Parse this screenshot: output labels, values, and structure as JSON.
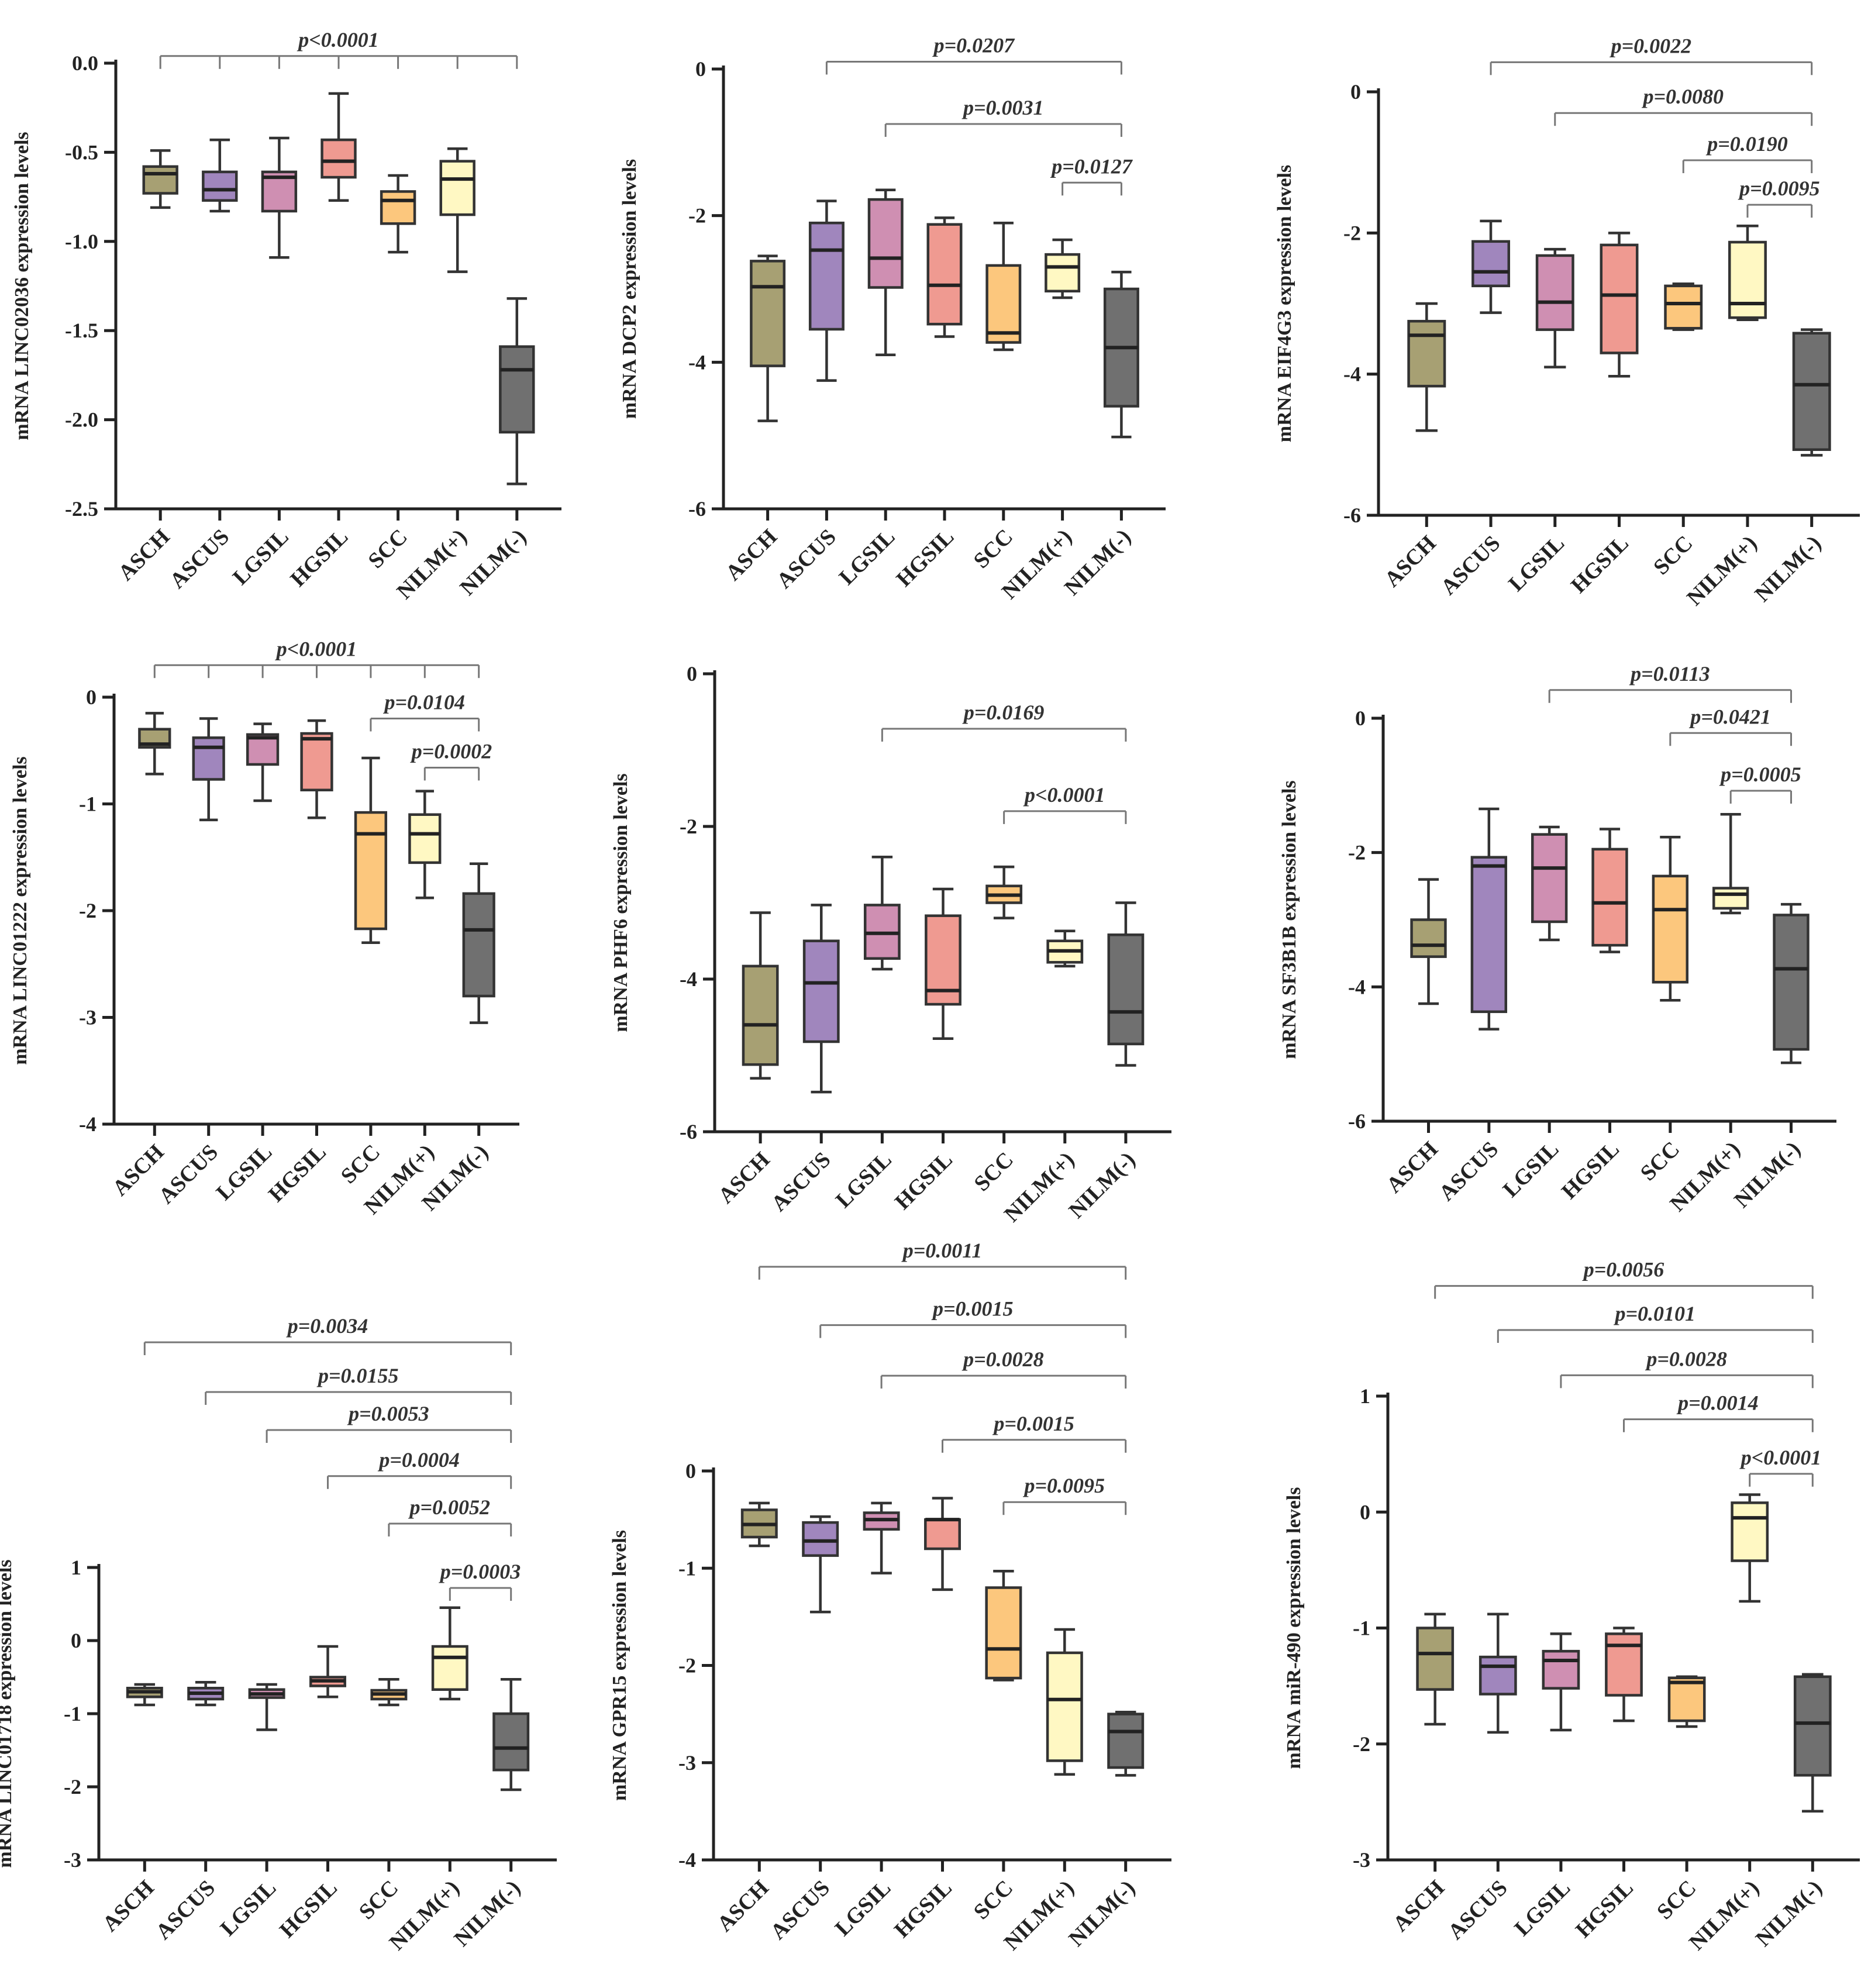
{
  "colors": {
    "ASCH": "#a7a073",
    "ASCUS": "#a086bd",
    "LGSIL": "#cf8fb2",
    "HGSIL": "#ef9a91",
    "SCC": "#fcc77d",
    "NILM(+)": "#fff8c3",
    "NILM(-)": "#707070"
  },
  "chart_data": [
    {
      "type": "box",
      "ylabel": "mRNA LINC02036 expression levels",
      "categories": [
        "ASCH",
        "ASCUS",
        "LGSIL",
        "HGSIL",
        "SCC",
        "NILM(+)",
        "NILM(-)"
      ],
      "ylim": [
        -2.5,
        0.0
      ],
      "yticks": [
        -2.5,
        -2.0,
        -1.5,
        -1.0,
        -0.5,
        0.0
      ],
      "ytick_labels": [
        "-2.5",
        "-2.0",
        "-1.5",
        "-1.0",
        "-0.5",
        "0.0"
      ],
      "boxes": [
        {
          "min": -0.81,
          "q1": -0.73,
          "median": -0.62,
          "q3": -0.58,
          "max": -0.49
        },
        {
          "min": -0.83,
          "q1": -0.77,
          "median": -0.71,
          "q3": -0.61,
          "max": -0.43
        },
        {
          "min": -1.09,
          "q1": -0.83,
          "median": -0.64,
          "q3": -0.61,
          "max": -0.42
        },
        {
          "min": -0.77,
          "q1": -0.64,
          "median": -0.55,
          "q3": -0.43,
          "max": -0.17
        },
        {
          "min": -1.06,
          "q1": -0.9,
          "median": -0.77,
          "q3": -0.72,
          "max": -0.63
        },
        {
          "min": -1.17,
          "q1": -0.85,
          "median": -0.65,
          "q3": -0.55,
          "max": -0.48
        },
        {
          "min": -2.36,
          "q1": -2.07,
          "median": -1.72,
          "q3": -1.59,
          "max": -1.32
        }
      ],
      "comparisons": [
        {
          "label": "p<0.0001",
          "from": 0,
          "to": 6,
          "ticks": [
            0,
            1,
            2,
            3,
            4,
            5,
            6
          ],
          "y": 0.04
        }
      ]
    },
    {
      "type": "box",
      "ylabel": "mRNA DCP2 expression levels",
      "categories": [
        "ASCH",
        "ASCUS",
        "LGSIL",
        "HGSIL",
        "SCC",
        "NILM(+)",
        "NILM(-)"
      ],
      "ylim": [
        -6,
        0
      ],
      "yticks": [
        -6,
        -4,
        -2,
        0
      ],
      "ytick_labels": [
        "-6",
        "-4",
        "-2",
        "0"
      ],
      "boxes": [
        {
          "min": -4.8,
          "q1": -4.05,
          "median": -2.97,
          "q3": -2.62,
          "max": -2.55
        },
        {
          "min": -4.25,
          "q1": -3.55,
          "median": -2.47,
          "q3": -2.1,
          "max": -1.8
        },
        {
          "min": -3.9,
          "q1": -2.98,
          "median": -2.58,
          "q3": -1.78,
          "max": -1.65
        },
        {
          "min": -3.65,
          "q1": -3.48,
          "median": -2.95,
          "q3": -2.12,
          "max": -2.03
        },
        {
          "min": -3.83,
          "q1": -3.73,
          "median": -3.6,
          "q3": -2.68,
          "max": -2.1
        },
        {
          "min": -3.12,
          "q1": -3.03,
          "median": -2.7,
          "q3": -2.53,
          "max": -2.33
        },
        {
          "min": -5.02,
          "q1": -4.6,
          "median": -3.8,
          "q3": -3.0,
          "max": -2.77
        }
      ],
      "comparisons": [
        {
          "label": "p=0.0207",
          "from": 1,
          "to": 6,
          "y": 0.1
        },
        {
          "label": "p=0.0031",
          "from": 2,
          "to": 6,
          "y": -0.75
        },
        {
          "label": "p=0.0127",
          "from": 5,
          "to": 6,
          "y": -1.55
        }
      ]
    },
    {
      "type": "box",
      "ylabel": "mRNA EIF4G3 expression levels",
      "categories": [
        "ASCH",
        "ASCUS",
        "LGSIL",
        "HGSIL",
        "SCC",
        "NILM(+)",
        "NILM(-)"
      ],
      "ylim": [
        -6,
        0
      ],
      "yticks": [
        -6,
        -4,
        -2,
        0
      ],
      "ytick_labels": [
        "-6",
        "-4",
        "-2",
        "0"
      ],
      "boxes": [
        {
          "min": -4.8,
          "q1": -4.17,
          "median": -3.45,
          "q3": -3.25,
          "max": -3.0
        },
        {
          "min": -3.13,
          "q1": -2.75,
          "median": -2.55,
          "q3": -2.12,
          "max": -1.83
        },
        {
          "min": -3.9,
          "q1": -3.37,
          "median": -2.98,
          "q3": -2.32,
          "max": -2.23
        },
        {
          "min": -4.03,
          "q1": -3.7,
          "median": -2.88,
          "q3": -2.17,
          "max": -2.0
        },
        {
          "min": -3.37,
          "q1": -3.35,
          "median": -3.0,
          "q3": -2.75,
          "max": -2.72
        },
        {
          "min": -3.23,
          "q1": -3.2,
          "median": -3.0,
          "q3": -2.13,
          "max": -1.9
        },
        {
          "min": -5.15,
          "q1": -5.07,
          "median": -4.15,
          "q3": -3.42,
          "max": -3.37
        }
      ],
      "comparisons": [
        {
          "label": "p=0.0022",
          "from": 1,
          "to": 6,
          "y": 0.42
        },
        {
          "label": "p=0.0080",
          "from": 2,
          "to": 6,
          "y": -0.3
        },
        {
          "label": "p=0.0190",
          "from": 4,
          "to": 6,
          "y": -0.97
        },
        {
          "label": "p=0.0095",
          "from": 5,
          "to": 6,
          "y": -1.6
        }
      ]
    },
    {
      "type": "box",
      "ylabel": "mRNA LINC01222 expression levels",
      "categories": [
        "ASCH",
        "ASCUS",
        "LGSIL",
        "HGSIL",
        "SCC",
        "NILM(+)",
        "NILM(-)"
      ],
      "ylim": [
        -4,
        0
      ],
      "yticks": [
        -4,
        -3,
        -2,
        -1,
        0
      ],
      "ytick_labels": [
        "-4",
        "-3",
        "-2",
        "-1",
        "0"
      ],
      "boxes": [
        {
          "min": -0.72,
          "q1": -0.47,
          "median": -0.44,
          "q3": -0.3,
          "max": -0.15
        },
        {
          "min": -1.15,
          "q1": -0.77,
          "median": -0.47,
          "q3": -0.38,
          "max": -0.2
        },
        {
          "min": -0.97,
          "q1": -0.63,
          "median": -0.38,
          "q3": -0.35,
          "max": -0.25
        },
        {
          "min": -1.13,
          "q1": -0.87,
          "median": -0.39,
          "q3": -0.34,
          "max": -0.22
        },
        {
          "min": -2.3,
          "q1": -2.17,
          "median": -1.28,
          "q3": -1.08,
          "max": -0.57
        },
        {
          "min": -1.88,
          "q1": -1.55,
          "median": -1.28,
          "q3": -1.1,
          "max": -0.88
        },
        {
          "min": -3.05,
          "q1": -2.8,
          "median": -2.18,
          "q3": -1.84,
          "max": -1.56
        }
      ],
      "comparisons": [
        {
          "label": "p<0.0001",
          "from": 0,
          "to": 6,
          "ticks": [
            0,
            1,
            2,
            3,
            4,
            5,
            6
          ],
          "y": 0.3
        },
        {
          "label": "p=0.0104",
          "from": 4,
          "to": 6,
          "y": -0.2
        },
        {
          "label": "p=0.0002",
          "from": 5,
          "to": 6,
          "y": -0.66
        }
      ]
    },
    {
      "type": "box",
      "ylabel": "mRNA PHF6 expression levels",
      "categories": [
        "ASCH",
        "ASCUS",
        "LGSIL",
        "HGSIL",
        "SCC",
        "NILM(+)",
        "NILM(-)"
      ],
      "ylim": [
        -6,
        0
      ],
      "yticks": [
        -6,
        -4,
        -2,
        0
      ],
      "ytick_labels": [
        "-6",
        "-4",
        "-2",
        "0"
      ],
      "boxes": [
        {
          "min": -5.3,
          "q1": -5.12,
          "median": -4.6,
          "q3": -3.83,
          "max": -3.13
        },
        {
          "min": -5.48,
          "q1": -4.82,
          "median": -4.05,
          "q3": -3.5,
          "max": -3.03
        },
        {
          "min": -3.87,
          "q1": -3.73,
          "median": -3.4,
          "q3": -3.03,
          "max": -2.4
        },
        {
          "min": -4.78,
          "q1": -4.33,
          "median": -4.15,
          "q3": -3.17,
          "max": -2.82
        },
        {
          "min": -3.2,
          "q1": -3.0,
          "median": -2.9,
          "q3": -2.78,
          "max": -2.53
        },
        {
          "min": -3.83,
          "q1": -3.78,
          "median": -3.63,
          "q3": -3.5,
          "max": -3.37
        },
        {
          "min": -5.13,
          "q1": -4.85,
          "median": -4.43,
          "q3": -3.42,
          "max": -3.0
        }
      ],
      "comparisons": [
        {
          "label": "p=0.0169",
          "from": 2,
          "to": 6,
          "y": -0.72
        },
        {
          "label": "p<0.0001",
          "from": 4,
          "to": 6,
          "y": -1.8
        }
      ]
    },
    {
      "type": "box",
      "ylabel": "mRNA SF3B1B expression levels",
      "categories": [
        "ASCH",
        "ASCUS",
        "LGSIL",
        "HGSIL",
        "SCC",
        "NILM(+)",
        "NILM(-)"
      ],
      "ylim": [
        -6,
        0
      ],
      "yticks": [
        -6,
        -4,
        -2,
        0
      ],
      "ytick_labels": [
        "-6",
        "-4",
        "-2",
        "0"
      ],
      "boxes": [
        {
          "min": -4.25,
          "q1": -3.55,
          "median": -3.38,
          "q3": -3.0,
          "max": -2.4
        },
        {
          "min": -4.63,
          "q1": -4.37,
          "median": -2.2,
          "q3": -2.07,
          "max": -1.35
        },
        {
          "min": -3.3,
          "q1": -3.03,
          "median": -2.23,
          "q3": -1.73,
          "max": -1.62
        },
        {
          "min": -3.48,
          "q1": -3.38,
          "median": -2.75,
          "q3": -1.95,
          "max": -1.65
        },
        {
          "min": -4.2,
          "q1": -3.93,
          "median": -2.85,
          "q3": -2.35,
          "max": -1.77
        },
        {
          "min": -2.9,
          "q1": -2.83,
          "median": -2.62,
          "q3": -2.53,
          "max": -1.43
        },
        {
          "min": -5.13,
          "q1": -4.93,
          "median": -3.73,
          "q3": -2.93,
          "max": -2.77
        }
      ],
      "comparisons": [
        {
          "label": "p=0.0113",
          "from": 2,
          "to": 6,
          "y": 0.42
        },
        {
          "label": "p=0.0421",
          "from": 4,
          "to": 6,
          "y": -0.22
        },
        {
          "label": "p=0.0005",
          "from": 5,
          "to": 6,
          "y": -1.08
        }
      ]
    },
    {
      "type": "box",
      "ylabel": "mRNA LINC01718 expression levels",
      "categories": [
        "ASCH",
        "ASCUS",
        "LGSIL",
        "HGSIL",
        "SCC",
        "NILM(+)",
        "NILM(-)"
      ],
      "ylim": [
        -3,
        1
      ],
      "yticks": [
        -3,
        -2,
        -1,
        0,
        1
      ],
      "ytick_labels": [
        "-3",
        "-2",
        "-1",
        "0",
        "1"
      ],
      "boxes": [
        {
          "min": -0.88,
          "q1": -0.77,
          "median": -0.7,
          "q3": -0.65,
          "max": -0.6
        },
        {
          "min": -0.88,
          "q1": -0.8,
          "median": -0.72,
          "q3": -0.65,
          "max": -0.57
        },
        {
          "min": -1.22,
          "q1": -0.78,
          "median": -0.73,
          "q3": -0.67,
          "max": -0.6
        },
        {
          "min": -0.77,
          "q1": -0.62,
          "median": -0.55,
          "q3": -0.5,
          "max": -0.08
        },
        {
          "min": -0.88,
          "q1": -0.8,
          "median": -0.73,
          "q3": -0.68,
          "max": -0.53
        },
        {
          "min": -0.8,
          "q1": -0.67,
          "median": -0.23,
          "q3": -0.08,
          "max": 0.45
        },
        {
          "min": -2.04,
          "q1": -1.77,
          "median": -1.47,
          "q3": -1.0,
          "max": -0.53
        }
      ],
      "comparisons": [
        {
          "label": "p=0.0034",
          "from": 0,
          "to": 6,
          "y": 4.08
        },
        {
          "label": "p=0.0155",
          "from": 1,
          "to": 6,
          "y": 3.4
        },
        {
          "label": "p=0.0053",
          "from": 2,
          "to": 6,
          "y": 2.88
        },
        {
          "label": "p=0.0004",
          "from": 3,
          "to": 6,
          "y": 2.25
        },
        {
          "label": "p=0.0052",
          "from": 4,
          "to": 6,
          "y": 1.6
        },
        {
          "label": "p=0.0003",
          "from": 5,
          "to": 6,
          "y": 0.72
        }
      ]
    },
    {
      "type": "box",
      "ylabel": "mRNA GPR15 expression levels",
      "categories": [
        "ASCH",
        "ASCUS",
        "LGSIL",
        "HGSIL",
        "SCC",
        "NILM(+)",
        "NILM(-)"
      ],
      "ylim": [
        -4,
        0
      ],
      "yticks": [
        -4,
        -3,
        -2,
        -1,
        0
      ],
      "ytick_labels": [
        "-4",
        "-3",
        "-2",
        "-1",
        "0"
      ],
      "boxes": [
        {
          "min": -0.77,
          "q1": -0.68,
          "median": -0.55,
          "q3": -0.4,
          "max": -0.33
        },
        {
          "min": -1.45,
          "q1": -0.87,
          "median": -0.72,
          "q3": -0.53,
          "max": -0.47
        },
        {
          "min": -1.05,
          "q1": -0.6,
          "median": -0.5,
          "q3": -0.43,
          "max": -0.33
        },
        {
          "min": -1.22,
          "q1": -0.8,
          "median": -0.5,
          "q3": -0.5,
          "max": -0.28
        },
        {
          "min": -2.15,
          "q1": -2.13,
          "median": -1.83,
          "q3": -1.2,
          "max": -1.03
        },
        {
          "min": -3.12,
          "q1": -2.98,
          "median": -2.35,
          "q3": -1.87,
          "max": -1.63
        },
        {
          "min": -3.13,
          "q1": -3.05,
          "median": -2.68,
          "q3": -2.5,
          "max": -2.48
        }
      ],
      "comparisons": [
        {
          "label": "p=0.0011",
          "from": 0,
          "to": 6,
          "y": 2.1
        },
        {
          "label": "p=0.0015",
          "from": 1,
          "to": 6,
          "y": 1.5
        },
        {
          "label": "p=0.0028",
          "from": 2,
          "to": 6,
          "y": 0.98
        },
        {
          "label": "p=0.0015",
          "from": 3,
          "to": 6,
          "y": 0.32
        },
        {
          "label": "p=0.0095",
          "from": 4,
          "to": 6,
          "y": -0.32
        }
      ]
    },
    {
      "type": "box",
      "ylabel": "mRNA miR-490 expression levels",
      "categories": [
        "ASCH",
        "ASCUS",
        "LGSIL",
        "HGSIL",
        "SCC",
        "NILM(+)",
        "NILM(-)"
      ],
      "ylim": [
        -3,
        1
      ],
      "yticks": [
        -3,
        -2,
        -1,
        0,
        1
      ],
      "ytick_labels": [
        "-3",
        "-2",
        "-1",
        "0",
        "1"
      ],
      "boxes": [
        {
          "min": -1.83,
          "q1": -1.53,
          "median": -1.22,
          "q3": -1.0,
          "max": -0.88
        },
        {
          "min": -1.9,
          "q1": -1.57,
          "median": -1.33,
          "q3": -1.25,
          "max": -0.88
        },
        {
          "min": -1.88,
          "q1": -1.52,
          "median": -1.28,
          "q3": -1.2,
          "max": -1.05
        },
        {
          "min": -1.8,
          "q1": -1.58,
          "median": -1.15,
          "q3": -1.05,
          "max": -1.0
        },
        {
          "min": -1.85,
          "q1": -1.8,
          "median": -1.47,
          "q3": -1.43,
          "max": -1.42
        },
        {
          "min": -0.77,
          "q1": -0.42,
          "median": -0.05,
          "q3": 0.08,
          "max": 0.15
        },
        {
          "min": -2.58,
          "q1": -2.27,
          "median": -1.82,
          "q3": -1.42,
          "max": -1.4
        }
      ],
      "comparisons": [
        {
          "label": "p=0.0056",
          "from": 0,
          "to": 6,
          "y": 1.95
        },
        {
          "label": "p=0.0101",
          "from": 1,
          "to": 6,
          "y": 1.57
        },
        {
          "label": "p=0.0028",
          "from": 2,
          "to": 6,
          "y": 1.18
        },
        {
          "label": "p=0.0014",
          "from": 3,
          "to": 6,
          "y": 0.8
        },
        {
          "label": "p<0.0001",
          "from": 5,
          "to": 6,
          "y": 0.33
        }
      ]
    }
  ]
}
